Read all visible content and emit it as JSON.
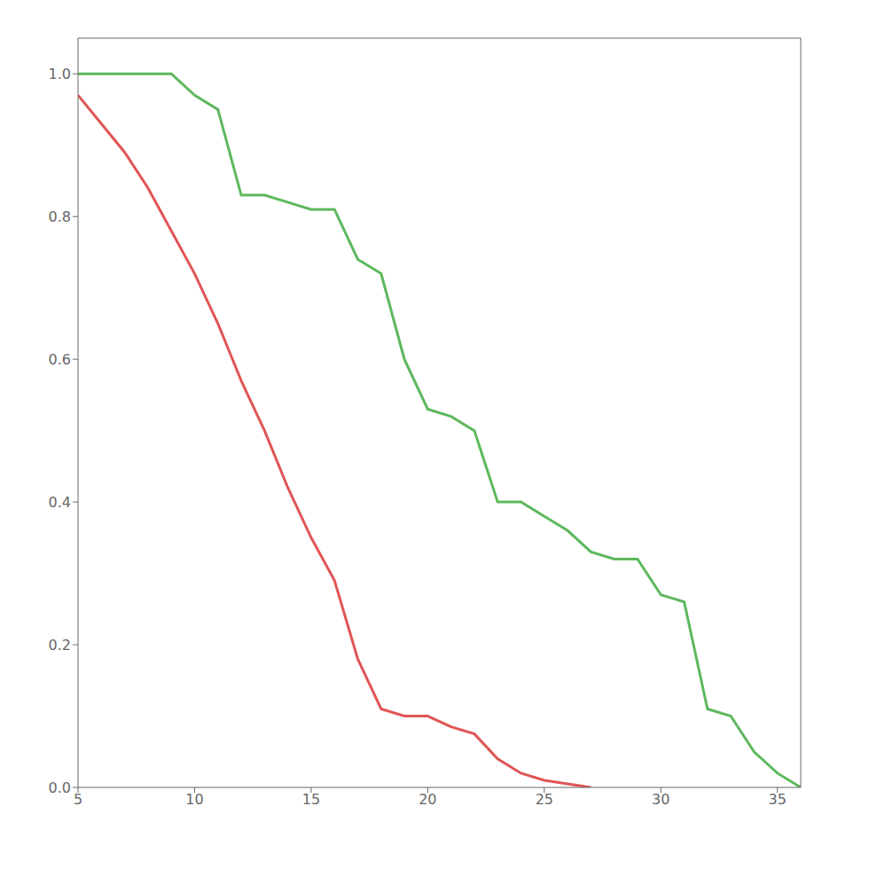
{
  "chart_data": {
    "type": "line",
    "series": [
      {
        "color": "#e05555",
        "x": [
          5,
          6,
          7,
          8,
          9,
          10,
          11,
          12,
          13,
          14,
          15,
          16,
          17,
          18,
          19,
          20,
          21,
          22,
          23,
          24,
          25,
          26,
          27
        ],
        "values": [
          0.97,
          0.93,
          0.89,
          0.84,
          0.78,
          0.72,
          0.65,
          0.57,
          0.5,
          0.42,
          0.35,
          0.29,
          0.18,
          0.11,
          0.1,
          0.1,
          0.085,
          0.075,
          0.04,
          0.02,
          0.01,
          0.005,
          0.0
        ]
      },
      {
        "color": "#5db85d",
        "x": [
          5,
          6,
          7,
          8,
          9,
          10,
          11,
          12,
          13,
          14,
          15,
          16,
          17,
          18,
          19,
          20,
          21,
          22,
          23,
          24,
          25,
          26,
          27,
          28,
          29,
          30,
          31,
          32,
          33,
          34,
          35,
          36
        ],
        "values": [
          1.0,
          1.0,
          1.0,
          1.0,
          1.0,
          0.97,
          0.95,
          0.83,
          0.83,
          0.82,
          0.81,
          0.81,
          0.74,
          0.72,
          0.6,
          0.53,
          0.52,
          0.5,
          0.4,
          0.4,
          0.38,
          0.36,
          0.33,
          0.32,
          0.32,
          0.27,
          0.26,
          0.11,
          0.1,
          0.05,
          0.02,
          0.0
        ]
      }
    ],
    "xlim": [
      5,
      36
    ],
    "ylim": [
      0.0,
      1.05
    ],
    "xticks": [
      5,
      10,
      15,
      20,
      25,
      30,
      35
    ],
    "yticks": [
      {
        "value": 0,
        "label": "0.0"
      },
      0.2,
      0.4,
      0.6,
      0.8,
      {
        "value": 1,
        "label": "1.0"
      }
    ],
    "grid": false
  }
}
